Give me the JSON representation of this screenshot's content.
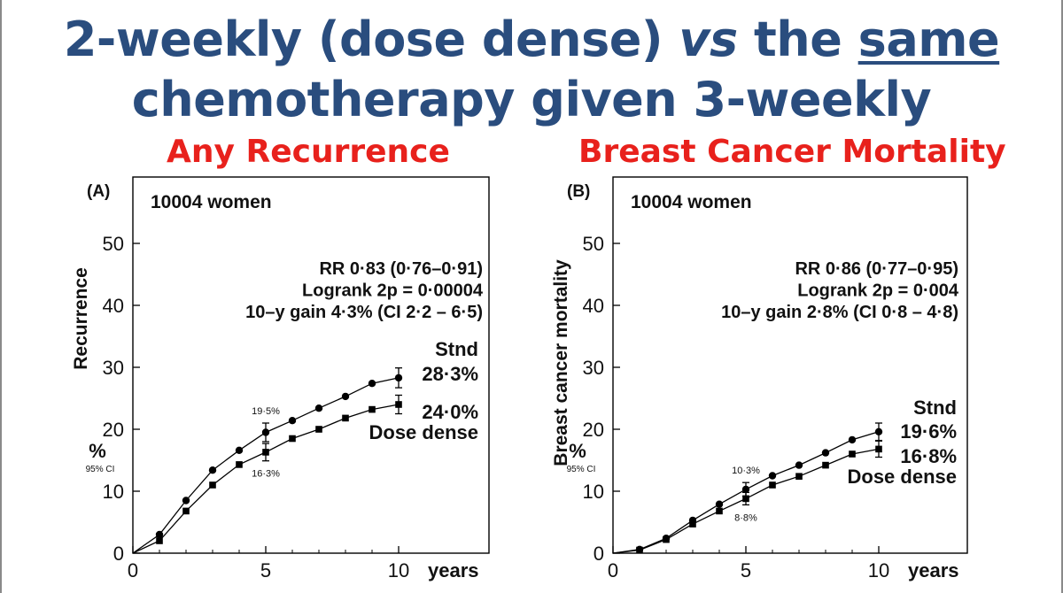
{
  "slide": {
    "title_line1_a": "2-weekly (dose dense) ",
    "title_line1_vs": "vs",
    "title_line1_b": " the ",
    "title_line1_same": "same",
    "title_line2": "chemotherapy given 3-weekly",
    "subtitle_left": "Any Recurrence",
    "subtitle_right": "Breast Cancer Mortality",
    "title_color": "#2a4d7e",
    "subtitle_color": "#e8211c"
  },
  "chart_data": [
    {
      "type": "line",
      "panel_label": "(A)",
      "cohort": "10004 women",
      "ylabel": "Recurrence",
      "y_unit": "%",
      "ci_label": "95% CI",
      "xlabel": "years",
      "xlim": [
        0,
        11
      ],
      "ylim": [
        0,
        55
      ],
      "xticks": [
        0,
        5,
        10
      ],
      "yticks": [
        0,
        10,
        20,
        30,
        40,
        50
      ],
      "grid": false,
      "x": [
        1,
        2,
        3,
        4,
        5,
        6,
        7,
        8,
        9,
        10
      ],
      "stats": [
        "RR 0·83 (0·76–0·91)",
        "Logrank 2p = 0·00004",
        "10–y gain 4·3% (CI 2·2 – 6·5)"
      ],
      "series": [
        {
          "name": "Stnd",
          "end_label": "28·3%",
          "marker": "circle",
          "values": [
            3.0,
            8.5,
            13.4,
            16.6,
            19.5,
            21.4,
            23.4,
            25.3,
            27.4,
            28.3
          ],
          "error_bars": {
            "5": 1.5,
            "10": 1.6
          },
          "annotation": {
            "x": 5,
            "text": "19·5%",
            "position": "above"
          }
        },
        {
          "name": "Dose dense",
          "end_label": "24·0%",
          "marker": "square",
          "values": [
            2.0,
            6.8,
            11.0,
            14.3,
            16.3,
            18.5,
            20.0,
            21.8,
            23.2,
            24.0
          ],
          "error_bars": {
            "5": 1.4,
            "10": 1.5
          },
          "annotation": {
            "x": 5,
            "text": "16·3%",
            "position": "below"
          }
        }
      ]
    },
    {
      "type": "line",
      "panel_label": "(B)",
      "cohort": "10004 women",
      "ylabel": "Breast cancer mortality",
      "y_unit": "%",
      "ci_label": "95% CI",
      "xlabel": "years",
      "xlim": [
        0,
        11
      ],
      "ylim": [
        0,
        55
      ],
      "xticks": [
        0,
        5,
        10
      ],
      "yticks": [
        0,
        10,
        20,
        30,
        40,
        50
      ],
      "grid": false,
      "x": [
        1,
        2,
        3,
        4,
        5,
        6,
        7,
        8,
        9,
        10
      ],
      "stats": [
        "RR 0·86 (0·77–0·95)",
        "Logrank 2p = 0·004",
        "10–y gain 2·8% (CI 0·8 – 4·8)"
      ],
      "series": [
        {
          "name": "Stnd",
          "end_label": "19·6%",
          "marker": "circle",
          "values": [
            0.6,
            2.4,
            5.3,
            7.9,
            10.3,
            12.5,
            14.2,
            16.2,
            18.3,
            19.6
          ],
          "error_bars": {
            "5": 1.1,
            "10": 1.4
          },
          "annotation": {
            "x": 5,
            "text": "10·3%",
            "position": "above"
          }
        },
        {
          "name": "Dose dense",
          "end_label": "16·8%",
          "marker": "square",
          "values": [
            0.5,
            2.2,
            4.7,
            6.8,
            8.8,
            11.0,
            12.4,
            14.2,
            16.0,
            16.8
          ],
          "error_bars": {
            "5": 1.0,
            "10": 1.3
          },
          "annotation": {
            "x": 5,
            "text": "8·8%",
            "position": "below"
          }
        }
      ]
    }
  ]
}
